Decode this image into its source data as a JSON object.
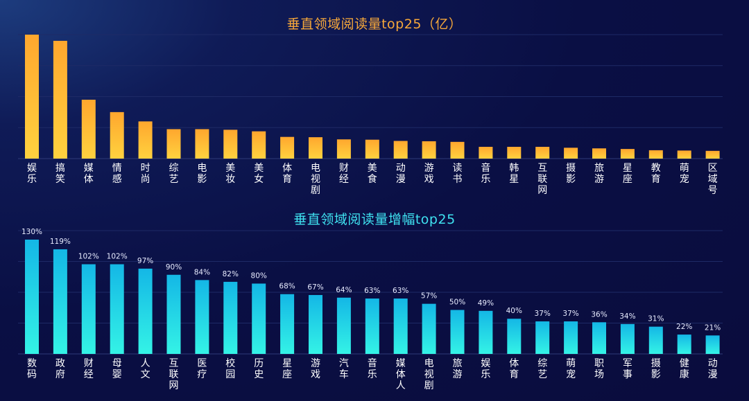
{
  "chart_data": [
    {
      "type": "bar",
      "title": "垂直领域阅读量top25（亿）",
      "categories": [
        "娱乐",
        "搞笑",
        "媒体",
        "情感",
        "时尚",
        "综艺",
        "电影",
        "美妆",
        "美女",
        "体育",
        "电视剧",
        "财经",
        "美食",
        "动漫",
        "游戏",
        "读书",
        "音乐",
        "韩星",
        "互联网",
        "摄影",
        "旅游",
        "星座",
        "教育",
        "萌宠",
        "区域号"
      ],
      "values": [
        40,
        38,
        19,
        15,
        12,
        9.5,
        9.5,
        9.3,
        8.8,
        7,
        6.9,
        6.2,
        6.1,
        5.7,
        5.6,
        5.4,
        3.8,
        3.8,
        3.8,
        3.5,
        3.3,
        3.1,
        2.7,
        2.6,
        2.5
      ],
      "value_labels": [],
      "ylim": [
        0,
        40
      ],
      "grid": true,
      "colors": {
        "bar_top": "#ffa72e",
        "bar_bottom": "#ffd23f",
        "label": "#ffffff"
      }
    },
    {
      "type": "bar",
      "title": "垂直领域阅读量增幅top25",
      "categories": [
        "数码",
        "政府",
        "财经",
        "母婴",
        "人文",
        "互联网",
        "医疗",
        "校园",
        "历史",
        "星座",
        "游戏",
        "汽车",
        "音乐",
        "媒体人",
        "电视剧",
        "旅游",
        "娱乐",
        "体育",
        "综艺",
        "萌宠",
        "职场",
        "军事",
        "摄影",
        "健康",
        "动漫"
      ],
      "values": [
        130,
        119,
        102,
        102,
        97,
        90,
        84,
        82,
        80,
        68,
        67,
        64,
        63,
        63,
        57,
        50,
        49,
        40,
        37,
        37,
        36,
        34,
        31,
        22,
        21
      ],
      "value_labels": [
        "130%",
        "119%",
        "102%",
        "102%",
        "97%",
        "90%",
        "84%",
        "82%",
        "80%",
        "68%",
        "67%",
        "64%",
        "63%",
        "63%",
        "57%",
        "50%",
        "49%",
        "40%",
        "37%",
        "37%",
        "36%",
        "34%",
        "31%",
        "22%",
        "21%"
      ],
      "ylim": [
        0,
        130
      ],
      "grid": true,
      "colors": {
        "bar_top": "#14b7e6",
        "bar_bottom": "#34f3e6",
        "label": "#ffffff"
      }
    }
  ]
}
